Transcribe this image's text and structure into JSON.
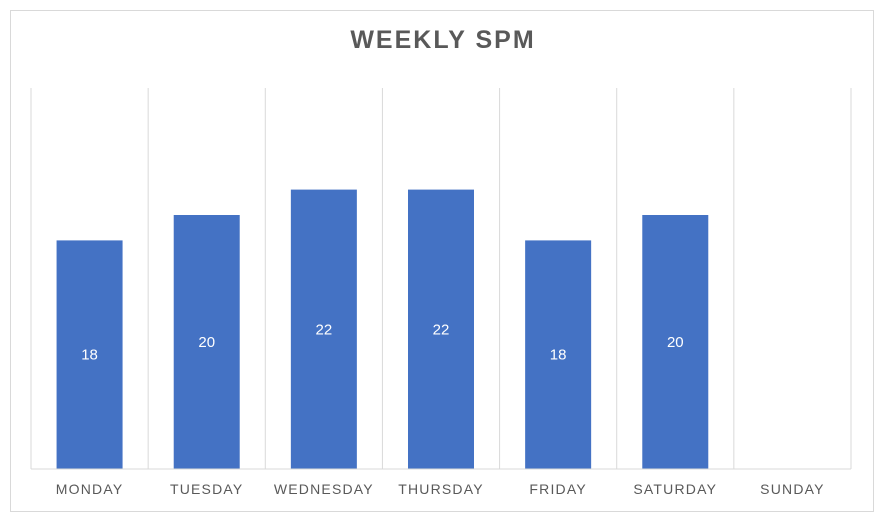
{
  "chart_data": {
    "type": "bar",
    "title": "WEEKLY SPM",
    "categories": [
      "MONDAY",
      "TUESDAY",
      "WEDNESDAY",
      "THURSDAY",
      "FRIDAY",
      "SATURDAY",
      "SUNDAY"
    ],
    "values": [
      18,
      20,
      22,
      22,
      18,
      20,
      null
    ],
    "data_labels": [
      "18",
      "20",
      "22",
      "22",
      "18",
      "20",
      ""
    ],
    "ylim": [
      0,
      30
    ],
    "grid": "vertical",
    "legend": "none",
    "bar_color": "#4472c4",
    "grid_color": "#d9d9d9",
    "text_color": "#595959",
    "label_color": "#ffffff"
  }
}
